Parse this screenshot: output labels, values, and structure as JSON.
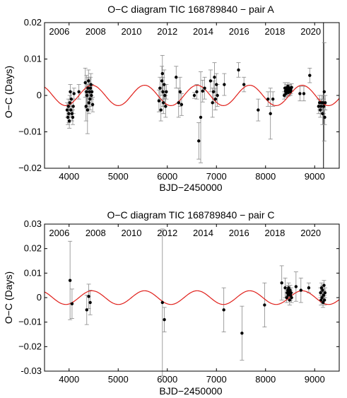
{
  "chart_data": [
    {
      "type": "scatter",
      "title": "O−C diagram TIC 168789840 − pair A",
      "xlabel": "BJD−2450000",
      "ylabel": "O−C (Days)",
      "xlim": [
        3500,
        9500
      ],
      "ylim": [
        -0.02,
        0.02
      ],
      "xticks": [
        4000,
        5000,
        6000,
        7000,
        8000,
        9000
      ],
      "yticks": [
        -0.02,
        -0.01,
        0,
        0.01,
        0.02
      ],
      "ytick_labels": [
        "−0.02",
        "−0.01",
        "0",
        "0.01",
        "0.02"
      ],
      "top_axis_years": [
        "2006",
        "2008",
        "2010",
        "2012",
        "2014",
        "2016",
        "2018",
        "2020"
      ],
      "top_axis_year_x": [
        3800,
        4540,
        5270,
        6000,
        6730,
        7460,
        8190,
        8920
      ],
      "vline_x": 9180,
      "model": {
        "color": "#e0201b",
        "amplitude": 0.0028,
        "period": 1070,
        "phase_x": 4200
      },
      "points": [
        {
          "x": 3960,
          "y": -0.004,
          "e": 0.002
        },
        {
          "x": 3975,
          "y": -0.006,
          "e": 0.002
        },
        {
          "x": 3985,
          "y": -0.003,
          "e": 0.002
        },
        {
          "x": 3995,
          "y": -0.005,
          "e": 0.0025
        },
        {
          "x": 4005,
          "y": -0.007,
          "e": 0.002
        },
        {
          "x": 4015,
          "y": -0.002,
          "e": 0.002
        },
        {
          "x": 4025,
          "y": 0.001,
          "e": 0.002
        },
        {
          "x": 4035,
          "y": -0.004,
          "e": 0.002
        },
        {
          "x": 4045,
          "y": -0.001,
          "e": 0.002
        },
        {
          "x": 4060,
          "y": -0.005,
          "e": 0.002
        },
        {
          "x": 4075,
          "y": -0.006,
          "e": 0.002
        },
        {
          "x": 4085,
          "y": -0.003,
          "e": 0.002
        },
        {
          "x": 4100,
          "y": 0.0005,
          "e": 0.0015
        },
        {
          "x": 4200,
          "y": 0.001,
          "e": 0.002
        },
        {
          "x": 4330,
          "y": 0.0035,
          "e": 0.004
        },
        {
          "x": 4345,
          "y": -0.003,
          "e": 0.004
        },
        {
          "x": 4355,
          "y": 0.001,
          "e": 0.0045
        },
        {
          "x": 4365,
          "y": 0.0,
          "e": 0.003
        },
        {
          "x": 4375,
          "y": -0.004,
          "e": 0.0065
        },
        {
          "x": 4385,
          "y": 0.002,
          "e": 0.003
        },
        {
          "x": 4395,
          "y": 0.004,
          "e": 0.003
        },
        {
          "x": 4405,
          "y": -0.002,
          "e": 0.003
        },
        {
          "x": 4415,
          "y": 0.001,
          "e": 0.0035
        },
        {
          "x": 4425,
          "y": -0.001,
          "e": 0.003
        },
        {
          "x": 4435,
          "y": 0.002,
          "e": 0.003
        },
        {
          "x": 4445,
          "y": 0.003,
          "e": 0.003
        },
        {
          "x": 4455,
          "y": 0.0,
          "e": 0.003
        },
        {
          "x": 4465,
          "y": 0.001,
          "e": 0.002
        },
        {
          "x": 4480,
          "y": -0.0025,
          "e": 0.002
        },
        {
          "x": 5830,
          "y": -0.0015,
          "e": 0.003
        },
        {
          "x": 5850,
          "y": 0.002,
          "e": 0.003
        },
        {
          "x": 5870,
          "y": -0.004,
          "e": 0.003
        },
        {
          "x": 5890,
          "y": 0.004,
          "e": 0.004
        },
        {
          "x": 5900,
          "y": 0.006,
          "e": 0.005
        },
        {
          "x": 5910,
          "y": 0.001,
          "e": 0.004
        },
        {
          "x": 5920,
          "y": -0.002,
          "e": 0.003
        },
        {
          "x": 5935,
          "y": 0.003,
          "e": 0.004
        },
        {
          "x": 5950,
          "y": 0.0,
          "e": 0.003
        },
        {
          "x": 5965,
          "y": -0.003,
          "e": 0.003
        },
        {
          "x": 5980,
          "y": 0.001,
          "e": 0.002
        },
        {
          "x": 6180,
          "y": 0.005,
          "e": 0.003
        },
        {
          "x": 6230,
          "y": -0.002,
          "e": 0.004
        },
        {
          "x": 6260,
          "y": 0.001,
          "e": 0.004
        },
        {
          "x": 6290,
          "y": -0.0025,
          "e": 0.003
        },
        {
          "x": 6550,
          "y": 0.0,
          "e": 0.0008
        },
        {
          "x": 6600,
          "y": 0.001,
          "e": 0.002
        },
        {
          "x": 6640,
          "y": -0.0125,
          "e": 0.005
        },
        {
          "x": 6680,
          "y": -0.006,
          "e": 0.0125
        },
        {
          "x": 6720,
          "y": 0.0012,
          "e": 0.003
        },
        {
          "x": 6760,
          "y": 0.002,
          "e": 0.003
        },
        {
          "x": 6880,
          "y": 0.004,
          "e": 0.003
        },
        {
          "x": 6920,
          "y": -0.002,
          "e": 0.004
        },
        {
          "x": 6940,
          "y": 0.001,
          "e": 0.003
        },
        {
          "x": 6960,
          "y": 0.005,
          "e": 0.004
        },
        {
          "x": 6980,
          "y": -0.001,
          "e": 0.003
        },
        {
          "x": 7000,
          "y": 0.003,
          "e": 0.003
        },
        {
          "x": 7020,
          "y": 0.0,
          "e": 0.003
        },
        {
          "x": 7160,
          "y": 0.003,
          "e": 0.003
        },
        {
          "x": 7450,
          "y": 0.007,
          "e": 0.002
        },
        {
          "x": 7560,
          "y": 0.003,
          "e": 0.002
        },
        {
          "x": 7850,
          "y": -0.004,
          "e": 0.003
        },
        {
          "x": 8050,
          "y": -0.001,
          "e": 0.002
        },
        {
          "x": 8100,
          "y": -0.005,
          "e": 0.007
        },
        {
          "x": 8150,
          "y": -0.001,
          "e": 0.002
        },
        {
          "x": 8380,
          "y": 0.0,
          "e": 0.001
        },
        {
          "x": 8395,
          "y": 0.002,
          "e": 0.0015
        },
        {
          "x": 8405,
          "y": 0.0012,
          "e": 0.001
        },
        {
          "x": 8415,
          "y": 0.0005,
          "e": 0.001
        },
        {
          "x": 8425,
          "y": 0.002,
          "e": 0.001
        },
        {
          "x": 8435,
          "y": 0.0015,
          "e": 0.001
        },
        {
          "x": 8445,
          "y": 0.001,
          "e": 0.0012
        },
        {
          "x": 8455,
          "y": 0.0025,
          "e": 0.001
        },
        {
          "x": 8465,
          "y": 0.0008,
          "e": 0.001
        },
        {
          "x": 8475,
          "y": 0.0018,
          "e": 0.001
        },
        {
          "x": 8485,
          "y": 0.0012,
          "e": 0.001
        },
        {
          "x": 8495,
          "y": 0.002,
          "e": 0.001
        },
        {
          "x": 8505,
          "y": 0.001,
          "e": 0.001
        },
        {
          "x": 8515,
          "y": 0.0015,
          "e": 0.001
        },
        {
          "x": 8530,
          "y": 0.0022,
          "e": 0.001
        },
        {
          "x": 8700,
          "y": 0.0005,
          "e": 0.002
        },
        {
          "x": 8780,
          "y": 0.0005,
          "e": 0.002
        },
        {
          "x": 8900,
          "y": 0.0055,
          "e": 0.002
        },
        {
          "x": 9080,
          "y": -0.003,
          "e": 0.002
        },
        {
          "x": 9100,
          "y": -0.002,
          "e": 0.002
        },
        {
          "x": 9115,
          "y": -0.004,
          "e": 0.002
        },
        {
          "x": 9130,
          "y": -0.003,
          "e": 0.002
        },
        {
          "x": 9145,
          "y": -0.002,
          "e": 0.002
        },
        {
          "x": 9160,
          "y": -0.005,
          "e": 0.003
        },
        {
          "x": 9170,
          "y": -0.002,
          "e": 0.002
        },
        {
          "x": 9185,
          "y": -0.003,
          "e": 0.002
        },
        {
          "x": 9195,
          "y": 0.001,
          "e": 0.0135
        },
        {
          "x": 9205,
          "y": -0.006,
          "e": 0.002
        },
        {
          "x": 9215,
          "y": -0.002,
          "e": 0.002
        }
      ]
    },
    {
      "type": "scatter",
      "title": "O−C diagram TIC 168789840 − pair C",
      "xlabel": "BJD−2450000",
      "ylabel": "O−C (Days)",
      "xlim": [
        3500,
        9500
      ],
      "ylim": [
        -0.03,
        0.03
      ],
      "xticks": [
        4000,
        5000,
        6000,
        7000,
        8000,
        9000
      ],
      "yticks": [
        -0.03,
        -0.02,
        -0.01,
        0,
        0.01,
        0.02,
        0.03
      ],
      "ytick_labels": [
        "-0.03",
        "−0.02",
        "−0.01",
        "0",
        "0.01",
        "0.02",
        "0.03"
      ],
      "top_axis_years": [
        "2006",
        "2008",
        "2010",
        "2012",
        "2014",
        "2016",
        "2018",
        "2020"
      ],
      "top_axis_year_x": [
        3800,
        4540,
        5270,
        6000,
        6730,
        7460,
        8190,
        8920
      ],
      "model": {
        "color": "#e0201b",
        "amplitude": 0.0028,
        "period": 1070,
        "phase_x": 4200
      },
      "points": [
        {
          "x": 4020,
          "y": 0.007,
          "e": 0.016
        },
        {
          "x": 4060,
          "y": -0.0025,
          "e": 0.006
        },
        {
          "x": 4360,
          "y": -0.005,
          "e": 0.006
        },
        {
          "x": 4400,
          "y": 0.0005,
          "e": 0.005
        },
        {
          "x": 4430,
          "y": -0.002,
          "e": 0.005
        },
        {
          "x": 5900,
          "y": -0.002,
          "e": 0.03
        },
        {
          "x": 5940,
          "y": -0.009,
          "e": 0.005
        },
        {
          "x": 7150,
          "y": -0.005,
          "e": 0.009
        },
        {
          "x": 7520,
          "y": -0.0145,
          "e": 0.011
        },
        {
          "x": 7980,
          "y": -0.003,
          "e": 0.009
        },
        {
          "x": 8330,
          "y": 0.006,
          "e": 0.007
        },
        {
          "x": 8400,
          "y": 0.004,
          "e": 0.004
        },
        {
          "x": 8430,
          "y": 0.0,
          "e": 0.002
        },
        {
          "x": 8440,
          "y": 0.002,
          "e": 0.002
        },
        {
          "x": 8450,
          "y": 0.003,
          "e": 0.002
        },
        {
          "x": 8460,
          "y": 0.001,
          "e": 0.002
        },
        {
          "x": 8470,
          "y": 0.004,
          "e": 0.002
        },
        {
          "x": 8480,
          "y": 0.002,
          "e": 0.002
        },
        {
          "x": 8490,
          "y": -0.001,
          "e": 0.002
        },
        {
          "x": 8500,
          "y": 0.003,
          "e": 0.002
        },
        {
          "x": 8510,
          "y": 0.001,
          "e": 0.002
        },
        {
          "x": 8520,
          "y": 0.002,
          "e": 0.002
        },
        {
          "x": 8530,
          "y": 0.0,
          "e": 0.002
        },
        {
          "x": 8620,
          "y": 0.0045,
          "e": 0.006
        },
        {
          "x": 8720,
          "y": 0.003,
          "e": 0.005
        },
        {
          "x": 8880,
          "y": 0.004,
          "e": 0.002
        },
        {
          "x": 9120,
          "y": 0.002,
          "e": 0.002
        },
        {
          "x": 9130,
          "y": -0.001,
          "e": 0.002
        },
        {
          "x": 9140,
          "y": 0.004,
          "e": 0.002
        },
        {
          "x": 9150,
          "y": 0.0,
          "e": 0.002
        },
        {
          "x": 9160,
          "y": 0.003,
          "e": 0.002
        },
        {
          "x": 9170,
          "y": -0.002,
          "e": 0.002
        },
        {
          "x": 9180,
          "y": 0.001,
          "e": 0.002
        },
        {
          "x": 9190,
          "y": 0.005,
          "e": 0.002
        },
        {
          "x": 9200,
          "y": -0.001,
          "e": 0.002
        },
        {
          "x": 9210,
          "y": 0.002,
          "e": 0.002
        }
      ]
    }
  ]
}
